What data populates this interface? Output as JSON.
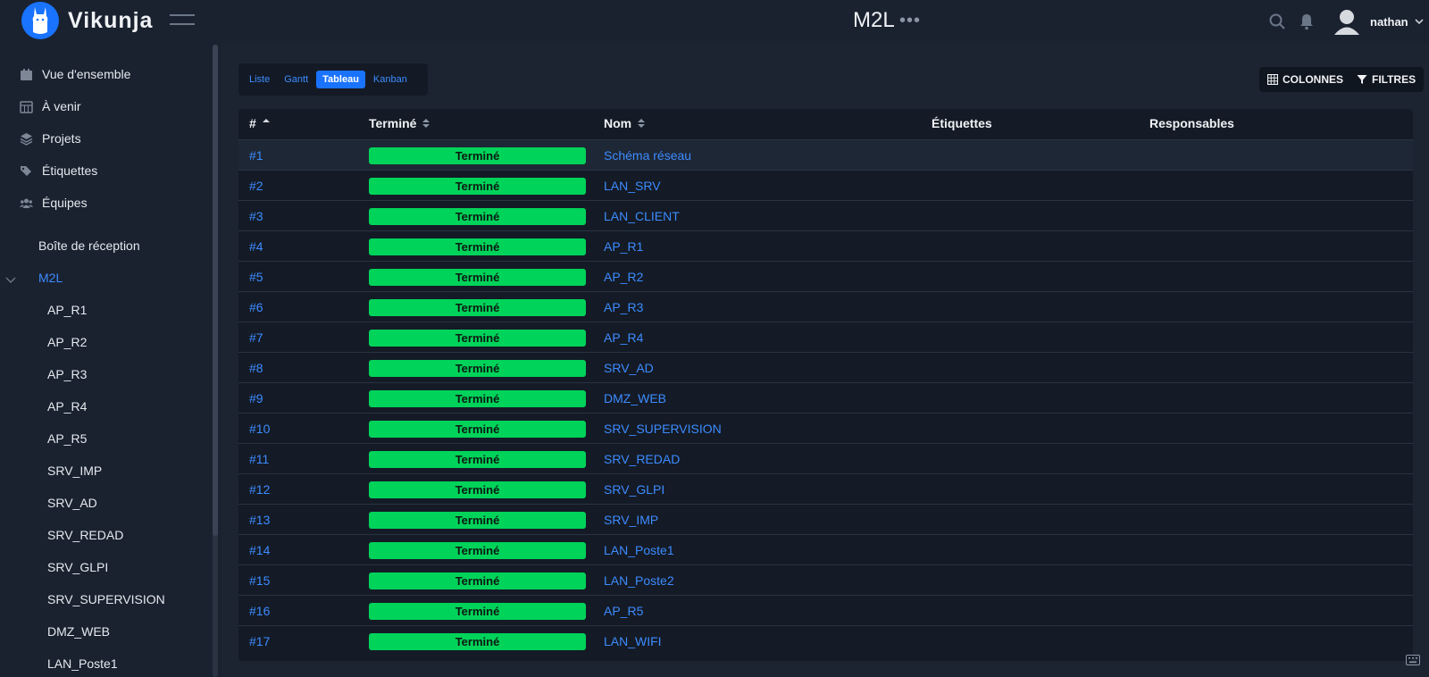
{
  "app": {
    "name": "Vikunja",
    "colors": {
      "accent": "#1973ff",
      "done": "#00d35a",
      "background": "#1a2230"
    }
  },
  "header": {
    "title": "M2L",
    "title_menu_icon": "ellipsis-icon",
    "user": {
      "name": "nathan"
    }
  },
  "sidebar": {
    "nav": [
      {
        "label": "Vue d'ensemble",
        "icon": "calendar-icon"
      },
      {
        "label": "À venir",
        "icon": "calendar-grid-icon"
      },
      {
        "label": "Projets",
        "icon": "layers-icon"
      },
      {
        "label": "Étiquettes",
        "icon": "tags-icon"
      },
      {
        "label": "Équipes",
        "icon": "users-icon"
      }
    ],
    "inbox": "Boîte de réception",
    "project": "M2L",
    "children": [
      "AP_R1",
      "AP_R2",
      "AP_R3",
      "AP_R4",
      "AP_R5",
      "SRV_IMP",
      "SRV_AD",
      "SRV_REDAD",
      "SRV_GLPI",
      "SRV_SUPERVISION",
      "DMZ_WEB",
      "LAN_Poste1"
    ]
  },
  "views": {
    "tabs": [
      "Liste",
      "Gantt",
      "Tableau",
      "Kanban"
    ],
    "active": "Tableau"
  },
  "actions": {
    "columns": "COLONNES",
    "filters": "FILTRES"
  },
  "table": {
    "headers": {
      "id": "#",
      "done": "Terminé",
      "name": "Nom",
      "labels": "Étiquettes",
      "assignees": "Responsables"
    },
    "rows": [
      {
        "id": "#1",
        "done": "Terminé",
        "name": "Schéma réseau"
      },
      {
        "id": "#2",
        "done": "Terminé",
        "name": "LAN_SRV"
      },
      {
        "id": "#3",
        "done": "Terminé",
        "name": "LAN_CLIENT"
      },
      {
        "id": "#4",
        "done": "Terminé",
        "name": "AP_R1"
      },
      {
        "id": "#5",
        "done": "Terminé",
        "name": "AP_R2"
      },
      {
        "id": "#6",
        "done": "Terminé",
        "name": "AP_R3"
      },
      {
        "id": "#7",
        "done": "Terminé",
        "name": "AP_R4"
      },
      {
        "id": "#8",
        "done": "Terminé",
        "name": "SRV_AD"
      },
      {
        "id": "#9",
        "done": "Terminé",
        "name": "DMZ_WEB"
      },
      {
        "id": "#10",
        "done": "Terminé",
        "name": "SRV_SUPERVISION"
      },
      {
        "id": "#11",
        "done": "Terminé",
        "name": "SRV_REDAD"
      },
      {
        "id": "#12",
        "done": "Terminé",
        "name": "SRV_GLPI"
      },
      {
        "id": "#13",
        "done": "Terminé",
        "name": "SRV_IMP"
      },
      {
        "id": "#14",
        "done": "Terminé",
        "name": "LAN_Poste1"
      },
      {
        "id": "#15",
        "done": "Terminé",
        "name": "LAN_Poste2"
      },
      {
        "id": "#16",
        "done": "Terminé",
        "name": "AP_R5"
      },
      {
        "id": "#17",
        "done": "Terminé",
        "name": "LAN_WIFI"
      }
    ]
  }
}
